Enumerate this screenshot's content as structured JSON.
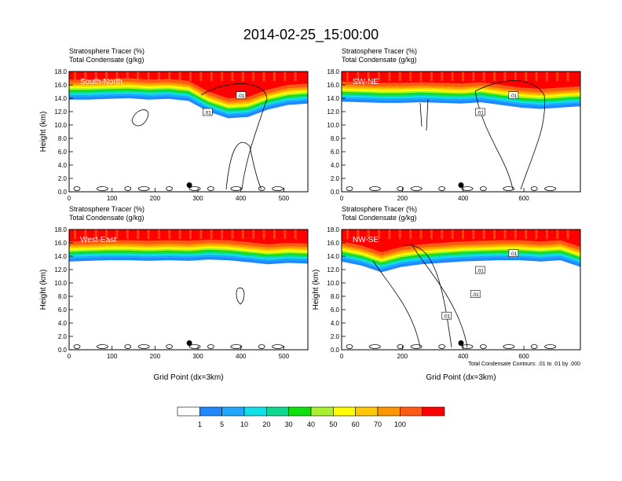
{
  "title": "2014-02-25_15:00:00",
  "colors": {
    "levels": [
      "#ffffff",
      "#1e88ff",
      "#20a8ff",
      "#10e0e8",
      "#10d890",
      "#10e010",
      "#a8f030",
      "#ffff00",
      "#ffc800",
      "#ff9600",
      "#ff5a14",
      "#ff0000"
    ],
    "contour": "#000000",
    "marker": "#000000"
  },
  "chart_data": [
    {
      "type": "heatmap",
      "line1": "Stratosphere Tracer   (%)",
      "line2": "Total Condensate   (g/kg)",
      "label": "South-North",
      "ylabel": "Height (km)",
      "xlabel": "",
      "xlim": [
        0,
        556
      ],
      "ylim": [
        0,
        18
      ],
      "xticks": [
        "0",
        "100",
        "200",
        "300",
        "400",
        "500"
      ],
      "yticks": [
        "0.0",
        "2.0",
        "4.0",
        "6.0",
        "8.0",
        "10.0",
        "12.0",
        "14.0",
        "16.0",
        "18.0"
      ],
      "contour_labels": [
        ".01",
        ".01"
      ],
      "marker": {
        "x": 280,
        "y": 1.0
      },
      "tropopause_km": [
        15.0,
        15.0,
        15.1,
        15.2,
        15.0,
        15.1,
        14.8,
        13.2,
        12.2,
        12.4,
        13.5,
        14.2,
        14.4
      ]
    },
    {
      "type": "heatmap",
      "line1": "Stratosphere Tracer   (%)",
      "line2": "Total Condensate   (g/kg)",
      "label": "SW-NE",
      "ylabel": "",
      "xlabel": "",
      "xlim": [
        0,
        786
      ],
      "ylim": [
        0,
        18
      ],
      "xticks": [
        "0",
        "200",
        "400",
        "600"
      ],
      "yticks": [
        "0.0",
        "2.0",
        "4.0",
        "6.0",
        "8.0",
        "10.0",
        "12.0",
        "14.0",
        "16.0",
        "18.0"
      ],
      "contour_labels": [
        ".01",
        ".01"
      ],
      "marker": {
        "x": 393,
        "y": 1.0
      },
      "tropopause_km": [
        14.7,
        14.6,
        14.5,
        14.5,
        14.6,
        14.5,
        14.4,
        14.6,
        14.2,
        13.8,
        13.6,
        13.8,
        14.0
      ]
    },
    {
      "type": "heatmap",
      "line1": "Stratosphere Tracer   (%)",
      "line2": "Total Condensate   (g/kg)",
      "label": "West-East",
      "ylabel": "Height (km)",
      "xlabel": "Grid Point (dx=3km)",
      "xlim": [
        0,
        556
      ],
      "ylim": [
        0,
        18
      ],
      "xticks": [
        "0",
        "100",
        "200",
        "300",
        "400",
        "500"
      ],
      "yticks": [
        "0.0",
        "2.0",
        "4.0",
        "6.0",
        "8.0",
        "10.0",
        "12.0",
        "14.0",
        "16.0",
        "18.0"
      ],
      "contour_labels": [],
      "marker": {
        "x": 280,
        "y": 1.0
      },
      "tropopause_km": [
        14.4,
        14.5,
        14.6,
        14.6,
        14.5,
        14.6,
        14.5,
        14.7,
        14.6,
        14.3,
        14.0,
        14.2,
        14.1
      ]
    },
    {
      "type": "heatmap",
      "line1": "Stratosphere Tracer   (%)",
      "line2": "Total Condensate   (g/kg)",
      "label": "NW-SE",
      "ylabel": "Height (km)",
      "xlabel": "Grid Point (dx=3km)",
      "xlim": [
        0,
        786
      ],
      "ylim": [
        0,
        18
      ],
      "xticks": [
        "0",
        "200",
        "400",
        "600"
      ],
      "yticks": [
        "0.0",
        "2.0",
        "4.0",
        "6.0",
        "8.0",
        "10.0",
        "12.0",
        "14.0",
        "16.0",
        "18.0"
      ],
      "contour_labels": [
        ".01",
        ".01",
        ".01",
        ".01"
      ],
      "marker": {
        "x": 393,
        "y": 1.0
      },
      "tropopause_km": [
        14.4,
        13.8,
        12.8,
        13.6,
        14.0,
        14.2,
        14.4,
        14.5,
        14.6,
        14.6,
        14.4,
        14.6,
        13.6
      ],
      "footnote": "Total Condensate Contours: .01 to .01 by .000"
    }
  ],
  "colorbar": {
    "labels": [
      "1",
      "5",
      "10",
      "20",
      "30",
      "40",
      "50",
      "60",
      "70",
      "100"
    ]
  }
}
